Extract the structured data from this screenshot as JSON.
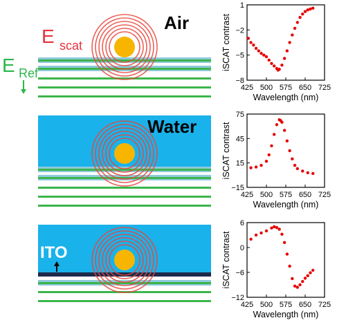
{
  "labels": {
    "air": "Air",
    "water": "Water",
    "ito": "ITO",
    "e_scat_main": "E",
    "e_scat_sub": "scat",
    "e_ref_main": "E",
    "e_ref_sub": "Ref"
  },
  "colors": {
    "water": "#1AB2EA",
    "stripe_green": "#3BB54A",
    "stripe_blue": "#8EC9DC",
    "ring": "#E8463C",
    "particle": "#F7B500",
    "e_scat_text": "#E8323C",
    "e_ref_text": "#2BB64A",
    "data_points": "#E60000"
  },
  "chart_data": [
    {
      "type": "scatter",
      "panel": "air",
      "xlabel": "Wavelength (nm)",
      "ylabel": "iSCAT contrast",
      "xlim": [
        425,
        725
      ],
      "ylim": [
        -8,
        1
      ],
      "xticks": [
        425,
        500,
        575,
        650,
        725
      ],
      "yticks": [
        1,
        -2,
        -5,
        -8
      ],
      "x": [
        430,
        440,
        450,
        460,
        470,
        480,
        490,
        500,
        510,
        520,
        530,
        540,
        545,
        550,
        560,
        570,
        580,
        590,
        600,
        610,
        620,
        630,
        640,
        650,
        660,
        670,
        680
      ],
      "y": [
        -3.0,
        -3.5,
        -3.8,
        -4.2,
        -4.5,
        -4.8,
        -5.0,
        -5.2,
        -5.6,
        -6.0,
        -6.3,
        -6.6,
        -6.8,
        -6.7,
        -6.2,
        -5.4,
        -4.5,
        -3.5,
        -2.6,
        -1.8,
        -1.1,
        -0.5,
        -0.1,
        0.2,
        0.4,
        0.5,
        0.6
      ]
    },
    {
      "type": "scatter",
      "panel": "water",
      "xlabel": "Wavelength (nm)",
      "ylabel": "iSCAT contrast",
      "xlim": [
        425,
        725
      ],
      "ylim": [
        -15,
        75
      ],
      "xticks": [
        425,
        500,
        575,
        650,
        725
      ],
      "yticks": [
        75,
        45,
        15,
        -15
      ],
      "x": [
        440,
        460,
        480,
        500,
        510,
        520,
        530,
        540,
        550,
        555,
        560,
        570,
        580,
        590,
        600,
        610,
        620,
        640,
        660,
        680
      ],
      "y": [
        9,
        10,
        12,
        17,
        25,
        36,
        50,
        62,
        68,
        67,
        65,
        55,
        42,
        30,
        20,
        12,
        8,
        5,
        3,
        2
      ]
    },
    {
      "type": "scatter",
      "panel": "ito",
      "xlabel": "Wavelength (nm)",
      "ylabel": "iSCAT contrast",
      "xlim": [
        425,
        725
      ],
      "ylim": [
        -12,
        6
      ],
      "xticks": [
        425,
        500,
        575,
        650,
        725
      ],
      "yticks": [
        6,
        0,
        -6,
        -12
      ],
      "x": [
        440,
        460,
        480,
        500,
        520,
        530,
        540,
        550,
        560,
        570,
        580,
        590,
        600,
        610,
        620,
        630,
        640,
        650,
        660,
        670,
        680
      ],
      "y": [
        2.0,
        3.0,
        3.5,
        4.0,
        4.7,
        5.0,
        4.8,
        4.4,
        3.2,
        1.2,
        -1.6,
        -4.5,
        -7.5,
        -9.3,
        -9.6,
        -9.0,
        -8.2,
        -7.4,
        -6.8,
        -6.1,
        -5.5
      ]
    }
  ]
}
